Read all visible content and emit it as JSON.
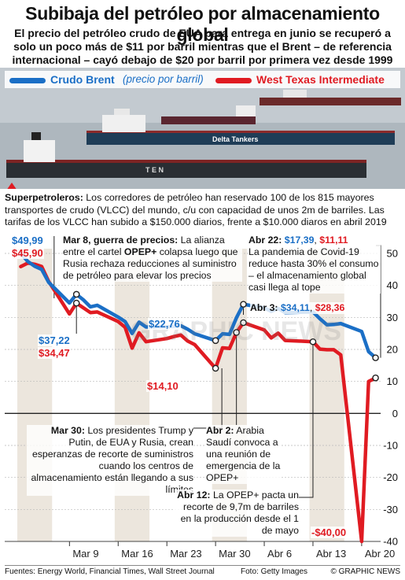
{
  "header": {
    "title": "Subibaja del petróleo por almacenamiento global",
    "subtitle": "El precio del petróleo crudo de EUA para entrega en junio se recuperó a solo un poco más de $11 por barril mientras que el Brent – de referencia internacional – cayó debajo de $20 por barril por primera vez desde 1999"
  },
  "legend": {
    "brent_name": "Crudo Brent",
    "brent_note": "(precio por barril)",
    "wti_name": "West Texas Intermediate"
  },
  "photo": {
    "ship_label": "Delta Tankers",
    "ship_label2": "T E N"
  },
  "caption": {
    "lead": "Superpetroleros:",
    "text": " Los corredores de petróleo han reservado 100 de los 815 mayores transportes de crudo (VLCC) del mundo, c/u con capacidad de unos 2m de barriles. Las tarifas de los VLCC han subido a $150.000 diarios, frente a $10.000 diaros en abril 2019"
  },
  "colors": {
    "brent": "#1b6fc6",
    "wti": "#e01b22",
    "band": "#ece6dd"
  },
  "chart_data": {
    "type": "line",
    "x": [
      "2020-03-02",
      "2020-03-03",
      "2020-03-04",
      "2020-03-05",
      "2020-03-06",
      "2020-03-09",
      "2020-03-10",
      "2020-03-11",
      "2020-03-12",
      "2020-03-13",
      "2020-03-16",
      "2020-03-17",
      "2020-03-18",
      "2020-03-19",
      "2020-03-20",
      "2020-03-23",
      "2020-03-24",
      "2020-03-25",
      "2020-03-26",
      "2020-03-27",
      "2020-03-30",
      "2020-03-31",
      "2020-04-01",
      "2020-04-02",
      "2020-04-03",
      "2020-04-06",
      "2020-04-07",
      "2020-04-08",
      "2020-04-09",
      "2020-04-13",
      "2020-04-14",
      "2020-04-15",
      "2020-04-16",
      "2020-04-17",
      "2020-04-20",
      "2020-04-21",
      "2020-04-22"
    ],
    "series": [
      {
        "name": "Crudo Brent",
        "values": [
          49.99,
          47.5,
          46.0,
          45.0,
          41.0,
          34.5,
          37.22,
          35.5,
          33.3,
          33.8,
          30.1,
          28.7,
          25.0,
          28.5,
          27.0,
          27.0,
          27.2,
          27.4,
          26.3,
          24.9,
          22.76,
          24.9,
          24.7,
          29.9,
          34.11,
          33.0,
          31.9,
          32.8,
          31.5,
          31.7,
          29.6,
          27.7,
          27.8,
          28.1,
          25.6,
          19.3,
          17.39
        ]
      },
      {
        "name": "West Texas Intermediate",
        "values": [
          45.9,
          47.0,
          46.6,
          45.9,
          41.3,
          31.1,
          34.47,
          33.0,
          31.5,
          31.7,
          28.7,
          26.9,
          20.4,
          25.2,
          22.4,
          23.4,
          24.0,
          24.5,
          22.6,
          21.5,
          14.1,
          20.5,
          20.3,
          25.3,
          28.36,
          26.1,
          23.6,
          25.1,
          22.8,
          22.4,
          20.1,
          19.9,
          19.9,
          18.3,
          -40.0,
          10.0,
          11.11
        ]
      }
    ],
    "ylim": [
      -40,
      50
    ],
    "yticks": [
      50,
      40,
      30,
      20,
      10,
      0,
      -10,
      -20,
      -30,
      -40
    ],
    "xticks": [
      "Mar 9",
      "Mar 16",
      "Mar 23",
      "Mar 30",
      "Abr 6",
      "Abr 13",
      "Abr 20"
    ],
    "xtick_dates": [
      "2020-03-09",
      "2020-03-16",
      "2020-03-23",
      "2020-03-30",
      "2020-04-06",
      "2020-04-13",
      "2020-04-20"
    ],
    "value_labels": {
      "brent_start": "$49,99",
      "wti_start": "$45,90",
      "brent_mar10": "$37,22",
      "wti_mar10": "$34,47",
      "brent_mar30": "$22,76",
      "wti_mar30": "$14,10",
      "wti_apr20": "-$40,00"
    },
    "annotations": {
      "mar8_head": "Mar 8, guerra de precios:",
      "mar8_text": " La alianza entre el cartel ",
      "mar8_bold": "OPEP+",
      "mar8_text2": " colapsa luego que Rusia rechaza reducciones al suministro de petróleo para elevar los precios",
      "apr22_head": "Abr 22:",
      "apr22_brent": "$17,39",
      "apr22_wti": "$11,11",
      "apr22_text": "La pandemia de Covid-19 reduce hasta 30% el consumo – el almacenamiento global casi llega al tope",
      "apr3_head": "Abr 3:",
      "apr3_brent": "$34,11",
      "apr3_wti": "$28,36",
      "mar30_head": "Mar 30:",
      "mar30_text": " Los presidentes Trump y Putin, de EUA y Rusia, crean esperanzas de recorte de suministros cuando los centros de almacenamiento están llegando a sus límites",
      "apr2_head": "Abr 2:",
      "apr2_text": " Arabia Saudí convoca a una reunión de emergencia de la OPEP+",
      "apr12_head": "Abr 12:",
      "apr12_text": " La OPEP+ pacta un recorte de 9,7m de barriles en la producción desde el 1 de mayo"
    }
  },
  "footer": {
    "sources": "Fuentes: Energy World, Financial Times, Wall Street Journal",
    "photo": "Foto: Getty Images",
    "credit": "© GRAPHIC NEWS"
  }
}
